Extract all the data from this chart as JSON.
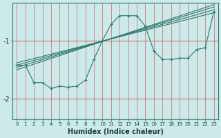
{
  "xlabel": "Humidex (Indice chaleur)",
  "bg_color": "#cceaea",
  "line_color": "#2a7a6a",
  "ylim": [
    -2.35,
    -0.35
  ],
  "xlim": [
    -0.5,
    23.5
  ],
  "yticks": [
    -2,
    -1
  ],
  "xticks": [
    0,
    1,
    2,
    3,
    4,
    5,
    6,
    7,
    8,
    9,
    10,
    11,
    12,
    13,
    14,
    15,
    16,
    17,
    18,
    19,
    20,
    21,
    22,
    23
  ],
  "main_x": [
    0,
    1,
    2,
    3,
    4,
    5,
    6,
    7,
    8,
    9,
    10,
    11,
    12,
    13,
    14,
    15,
    16,
    17,
    18,
    19,
    20,
    21,
    22,
    23
  ],
  "main_y": [
    -1.42,
    -1.42,
    -1.72,
    -1.72,
    -1.82,
    -1.78,
    -1.8,
    -1.78,
    -1.68,
    -1.32,
    -1.0,
    -0.72,
    -0.57,
    -0.57,
    -0.57,
    -0.75,
    -1.18,
    -1.32,
    -1.32,
    -1.3,
    -1.3,
    -1.15,
    -1.12,
    -0.5
  ],
  "reg_lines": [
    {
      "x0": 0,
      "y0": -1.38,
      "x1": 23,
      "y1": -0.52
    },
    {
      "x0": 0,
      "y0": -1.42,
      "x1": 23,
      "y1": -0.47
    },
    {
      "x0": 0,
      "y0": -1.46,
      "x1": 23,
      "y1": -0.42
    },
    {
      "x0": 0,
      "y0": -1.5,
      "x1": 23,
      "y1": -0.38
    }
  ]
}
